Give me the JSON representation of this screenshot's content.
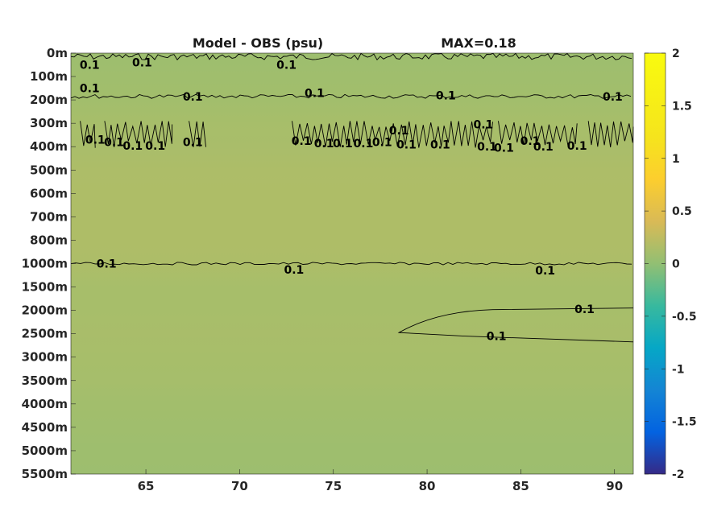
{
  "chart_data": {
    "type": "heatmap",
    "title": "Model - OBS (psu)",
    "subtitle": "MAX=0.18",
    "x": {
      "range": [
        61,
        91
      ],
      "ticks": [
        65,
        70,
        75,
        80,
        85,
        90
      ],
      "tick_labels": [
        "65",
        "70",
        "75",
        "80",
        "85",
        "90"
      ]
    },
    "y": {
      "reversed": true,
      "levels": [
        "0m",
        "100m",
        "200m",
        "300m",
        "400m",
        "500m",
        "600m",
        "700m",
        "800m",
        "1000m",
        "1500m",
        "2000m",
        "2500m",
        "3000m",
        "3500m",
        "4000m",
        "4500m",
        "5000m",
        "5500m"
      ]
    },
    "colorbar": {
      "range": [
        -2,
        2
      ],
      "colormap": "parula",
      "ticks": [
        2,
        1.5,
        1,
        0.5,
        0,
        -0.5,
        -1,
        -1.5,
        -2
      ],
      "tick_labels": [
        "2",
        "1.5",
        "1",
        "0.5",
        "0",
        "-0.5",
        "-1",
        "-1.5",
        "-2"
      ]
    },
    "field_by_level": [
      0.06,
      0.08,
      0.09,
      0.12,
      0.13,
      0.15,
      0.16,
      0.16,
      0.16,
      0.15,
      0.12,
      0.12,
      0.13,
      0.12,
      0.11,
      0.09,
      0.08,
      0.07,
      0.06
    ],
    "contour_level": 0.1,
    "contour_label": "0.1",
    "contours": [
      {
        "name": "near-surface",
        "level_index": 0.15,
        "x_range": [
          61,
          91
        ]
      },
      {
        "name": "200m",
        "level_index": 1.85,
        "x_range": [
          61,
          91
        ]
      },
      {
        "name": "300-400m patches",
        "level_index": 3.5,
        "x_range": [
          61.5,
          91
        ]
      },
      {
        "name": "1000m",
        "level_index": 9.0,
        "x_range": [
          61,
          91
        ]
      },
      {
        "name": "2000-2500m tongue",
        "level_index_top": 10.9,
        "level_index_bottom": 12.35,
        "x_range": [
          78.5,
          91
        ]
      }
    ],
    "contour_labels": [
      {
        "x": 62.0,
        "level": 0.5
      },
      {
        "x": 64.8,
        "level": 0.4
      },
      {
        "x": 72.5,
        "level": 0.5
      },
      {
        "x": 62.0,
        "level": 1.5
      },
      {
        "x": 67.5,
        "level": 1.85
      },
      {
        "x": 74.0,
        "level": 1.7
      },
      {
        "x": 81.0,
        "level": 1.8
      },
      {
        "x": 89.9,
        "level": 1.85
      },
      {
        "x": 62.3,
        "level": 3.7
      },
      {
        "x": 63.3,
        "level": 3.8
      },
      {
        "x": 64.3,
        "level": 3.95
      },
      {
        "x": 65.5,
        "level": 3.95
      },
      {
        "x": 67.5,
        "level": 3.8
      },
      {
        "x": 73.3,
        "level": 3.75
      },
      {
        "x": 74.5,
        "level": 3.85
      },
      {
        "x": 75.5,
        "level": 3.85
      },
      {
        "x": 76.6,
        "level": 3.85
      },
      {
        "x": 77.6,
        "level": 3.8
      },
      {
        "x": 78.5,
        "level": 3.3
      },
      {
        "x": 78.9,
        "level": 3.9
      },
      {
        "x": 80.7,
        "level": 3.9
      },
      {
        "x": 83.0,
        "level": 3.05
      },
      {
        "x": 83.2,
        "level": 4.0
      },
      {
        "x": 84.1,
        "level": 4.05
      },
      {
        "x": 85.5,
        "level": 3.75
      },
      {
        "x": 86.2,
        "level": 4.0
      },
      {
        "x": 88.0,
        "level": 3.95
      },
      {
        "x": 62.9,
        "level": 9.0
      },
      {
        "x": 72.9,
        "level": 9.25
      },
      {
        "x": 86.3,
        "level": 9.3
      },
      {
        "x": 88.4,
        "level": 10.95
      },
      {
        "x": 83.7,
        "level": 12.1
      }
    ]
  }
}
